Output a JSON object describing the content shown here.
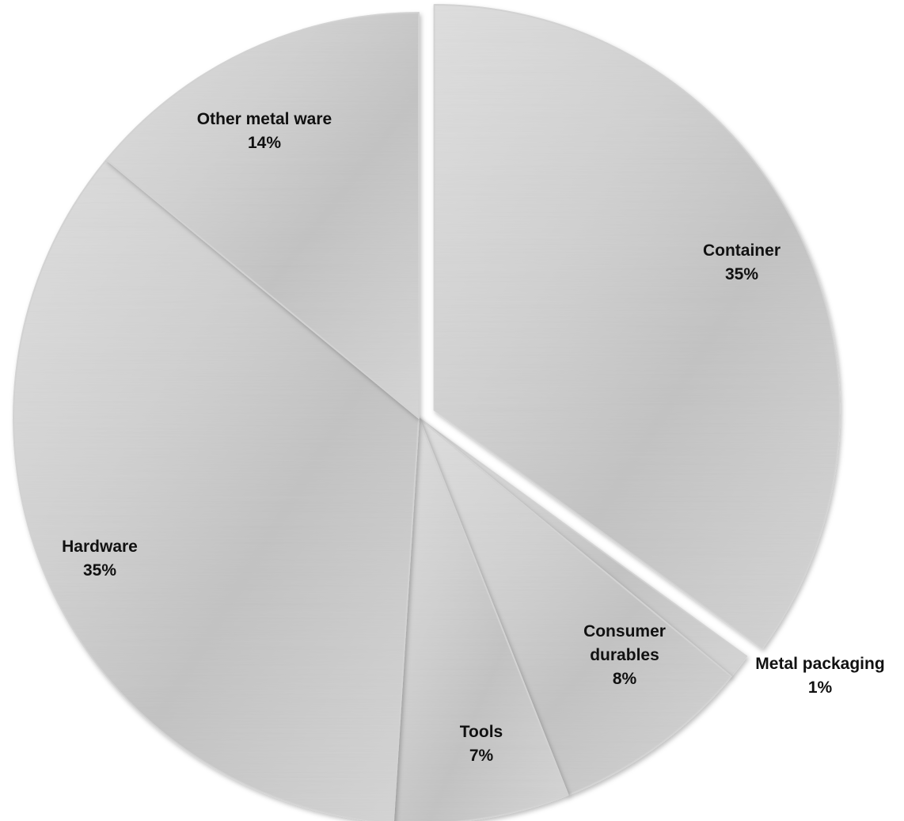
{
  "chart_data": {
    "type": "pie",
    "title": "",
    "legend": "none",
    "slices": [
      {
        "name": "Container",
        "label": "Container",
        "value_label": "35%",
        "value": 35,
        "exploded": true
      },
      {
        "name": "Metal packaging",
        "label": "Metal packaging",
        "value_label": "1%",
        "value": 1,
        "exploded": false
      },
      {
        "name": "Consumer durables",
        "label_lines": [
          "Consumer",
          "durables"
        ],
        "value_label": "8%",
        "value": 8,
        "exploded": false
      },
      {
        "name": "Tools",
        "label": "Tools",
        "value_label": "7%",
        "value": 7,
        "exploded": false
      },
      {
        "name": "Hardware",
        "label": "Hardware",
        "value_label": "35%",
        "value": 35,
        "exploded": false
      },
      {
        "name": "Other metal ware",
        "label": "Other metal ware",
        "value_label": "14%",
        "value": 14,
        "exploded": false
      }
    ]
  },
  "colors": {
    "slice_fill_light": "#ececec",
    "slice_fill_mid": "#c9c9c9",
    "slice_fill_dark": "#a8a8a8",
    "slice_edge": "#d4d4d4",
    "label_text": "#111111",
    "background": "#ffffff"
  }
}
